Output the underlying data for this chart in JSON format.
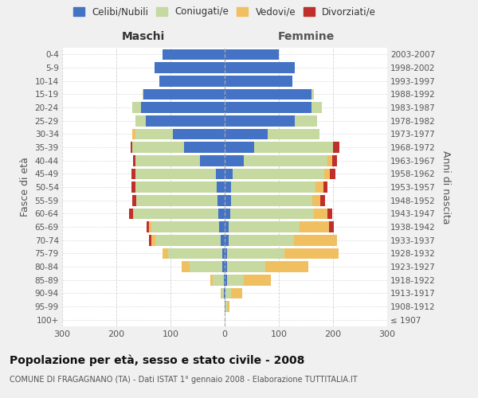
{
  "age_groups": [
    "100+",
    "95-99",
    "90-94",
    "85-89",
    "80-84",
    "75-79",
    "70-74",
    "65-69",
    "60-64",
    "55-59",
    "50-54",
    "45-49",
    "40-44",
    "35-39",
    "30-34",
    "25-29",
    "20-24",
    "15-19",
    "10-14",
    "5-9",
    "0-4"
  ],
  "birth_years": [
    "≤ 1907",
    "1908-1912",
    "1913-1917",
    "1918-1922",
    "1923-1927",
    "1928-1932",
    "1933-1937",
    "1938-1942",
    "1943-1947",
    "1948-1952",
    "1953-1957",
    "1958-1962",
    "1963-1967",
    "1968-1972",
    "1973-1977",
    "1978-1982",
    "1983-1987",
    "1988-1992",
    "1993-1997",
    "1998-2002",
    "2003-2007"
  ],
  "maschi": {
    "celibi": [
      0,
      0,
      1,
      2,
      5,
      5,
      8,
      10,
      12,
      13,
      14,
      16,
      45,
      75,
      95,
      145,
      155,
      150,
      120,
      130,
      115
    ],
    "coniugati": [
      0,
      0,
      5,
      20,
      60,
      100,
      120,
      125,
      155,
      150,
      150,
      148,
      120,
      95,
      70,
      20,
      15,
      2,
      0,
      0,
      0
    ],
    "vedovi": [
      0,
      0,
      2,
      5,
      15,
      10,
      8,
      5,
      2,
      0,
      0,
      0,
      0,
      0,
      5,
      0,
      0,
      0,
      0,
      0,
      0
    ],
    "divorziati": [
      0,
      0,
      0,
      0,
      0,
      0,
      4,
      4,
      8,
      8,
      8,
      8,
      4,
      4,
      0,
      0,
      0,
      0,
      0,
      0,
      0
    ]
  },
  "femmine": {
    "nubili": [
      0,
      2,
      2,
      5,
      5,
      5,
      8,
      8,
      10,
      12,
      12,
      14,
      35,
      55,
      80,
      130,
      160,
      160,
      125,
      130,
      100
    ],
    "coniugate": [
      0,
      2,
      10,
      30,
      70,
      105,
      120,
      130,
      155,
      150,
      155,
      170,
      155,
      145,
      95,
      40,
      20,
      5,
      0,
      0,
      0
    ],
    "vedove": [
      0,
      5,
      20,
      50,
      80,
      100,
      80,
      55,
      25,
      15,
      15,
      10,
      8,
      0,
      0,
      0,
      0,
      0,
      0,
      0,
      0
    ],
    "divorziate": [
      0,
      0,
      0,
      0,
      0,
      0,
      0,
      8,
      8,
      8,
      8,
      10,
      10,
      12,
      0,
      0,
      0,
      0,
      0,
      0,
      0
    ]
  },
  "colors": {
    "celibi_nubili": "#4472c4",
    "coniugati": "#c5d9a0",
    "vedovi": "#f0c060",
    "divorziati": "#c0302a"
  },
  "xlim": 300,
  "title": "Popolazione per età, sesso e stato civile - 2008",
  "subtitle": "COMUNE DI FRAGAGNANO (TA) - Dati ISTAT 1° gennaio 2008 - Elaborazione TUTTITALIA.IT",
  "xlabel_left": "Maschi",
  "xlabel_right": "Femmine",
  "ylabel_left": "Fasce di età",
  "ylabel_right": "Anni di nascita",
  "legend_labels": [
    "Celibi/Nubili",
    "Coniugati/e",
    "Vedovi/e",
    "Divorziati/e"
  ],
  "bg_color": "#f0f0f0",
  "plot_bg": "#ffffff",
  "grid_color": "#cccccc"
}
